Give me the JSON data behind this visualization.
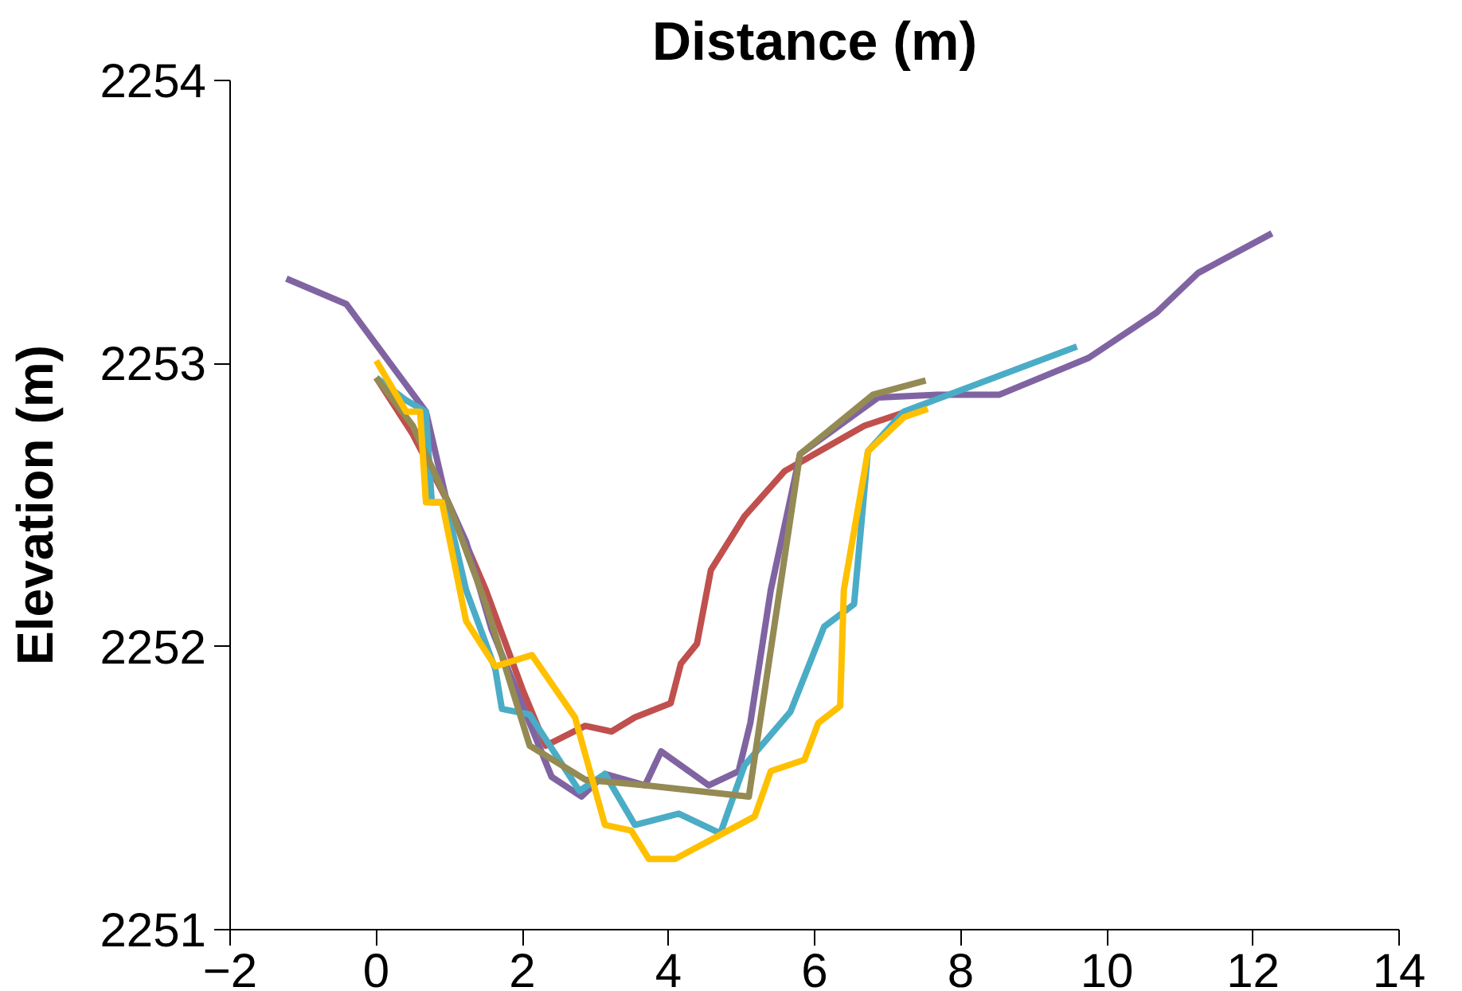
{
  "chart_data": {
    "type": "line",
    "xlabel": "Distance (m)",
    "ylabel": "Elevation (m)",
    "xlim": [
      -2,
      14
    ],
    "xticks": [
      -2,
      0,
      2,
      4,
      6,
      8,
      10,
      12,
      14
    ],
    "ylim": [
      2251,
      2254
    ],
    "yticks": [
      2251,
      2252,
      2253,
      2254
    ],
    "grid": false,
    "marker": "none",
    "line_style": "solid",
    "series": [
      {
        "color": "#c0504d",
        "x": [
          0,
          0.5,
          1,
          1.5,
          2,
          2.32,
          2.86,
          3.22,
          3.54,
          4.03,
          4.17,
          4.39,
          4.58,
          5.04,
          5.59,
          6.68,
          7.49
        ],
        "values": [
          2252.95,
          2252.75,
          2252.5,
          2252.2,
          2251.85,
          2251.65,
          2251.72,
          2251.7,
          2251.75,
          2251.8,
          2251.94,
          2252.01,
          2252.27,
          2252.46,
          2252.62,
          2252.78,
          2252.85
        ]
      },
      {
        "color": "#8064a2",
        "x": [
          -1.23,
          -0.41,
          0.68,
          0.95,
          1.23,
          1.58,
          2.4,
          2.81,
          3.13,
          3.68,
          3.9,
          4.55,
          4.96,
          5.12,
          5.4,
          5.8,
          6.87,
          7.68,
          8.53,
          9.75,
          10.68,
          11.25,
          12.26
        ],
        "values": [
          2253.3,
          2253.21,
          2252.83,
          2252.53,
          2252.37,
          2252.06,
          2251.54,
          2251.47,
          2251.55,
          2251.51,
          2251.63,
          2251.51,
          2251.56,
          2251.73,
          2252.2,
          2252.68,
          2252.88,
          2252.89,
          2252.89,
          2253.02,
          2253.18,
          2253.32,
          2253.46
        ]
      },
      {
        "color": "#4bacc6",
        "x": [
          0,
          0.41,
          0.68,
          0.76,
          0.95,
          1.23,
          1.63,
          1.72,
          2.1,
          2.78,
          3.13,
          3.54,
          4.14,
          4.71,
          5.04,
          5.67,
          6.13,
          6.54,
          6.73,
          7.22,
          9.59
        ],
        "values": [
          2252.95,
          2252.87,
          2252.83,
          2252.51,
          2252.51,
          2252.2,
          2251.92,
          2251.78,
          2251.76,
          2251.49,
          2251.55,
          2251.37,
          2251.41,
          2251.34,
          2251.58,
          2251.77,
          2252.07,
          2252.15,
          2252.69,
          2252.83,
          2253.06
        ]
      },
      {
        "color": "#948a54",
        "x": [
          0,
          0.5,
          1,
          1.5,
          2.1,
          2.86,
          3.68,
          5.1,
          5.8,
          6.8,
          7.52
        ],
        "values": [
          2252.95,
          2252.78,
          2252.5,
          2252.15,
          2251.65,
          2251.53,
          2251.51,
          2251.47,
          2252.68,
          2252.89,
          2252.94
        ]
      },
      {
        "color": "#ffc000",
        "x": [
          0,
          0.41,
          0.6,
          0.68,
          0.9,
          1.23,
          1.63,
          2.13,
          2.72,
          3.13,
          3.49,
          3.73,
          4.09,
          5.18,
          5.4,
          5.86,
          6.05,
          6.35,
          6.4,
          6.73,
          7.22,
          7.55
        ],
        "values": [
          2253.01,
          2252.83,
          2252.83,
          2252.51,
          2252.51,
          2252.09,
          2251.93,
          2251.97,
          2251.75,
          2251.37,
          2251.35,
          2251.25,
          2251.25,
          2251.4,
          2251.56,
          2251.6,
          2251.73,
          2251.79,
          2252.2,
          2252.69,
          2252.81,
          2252.84
        ]
      }
    ]
  }
}
